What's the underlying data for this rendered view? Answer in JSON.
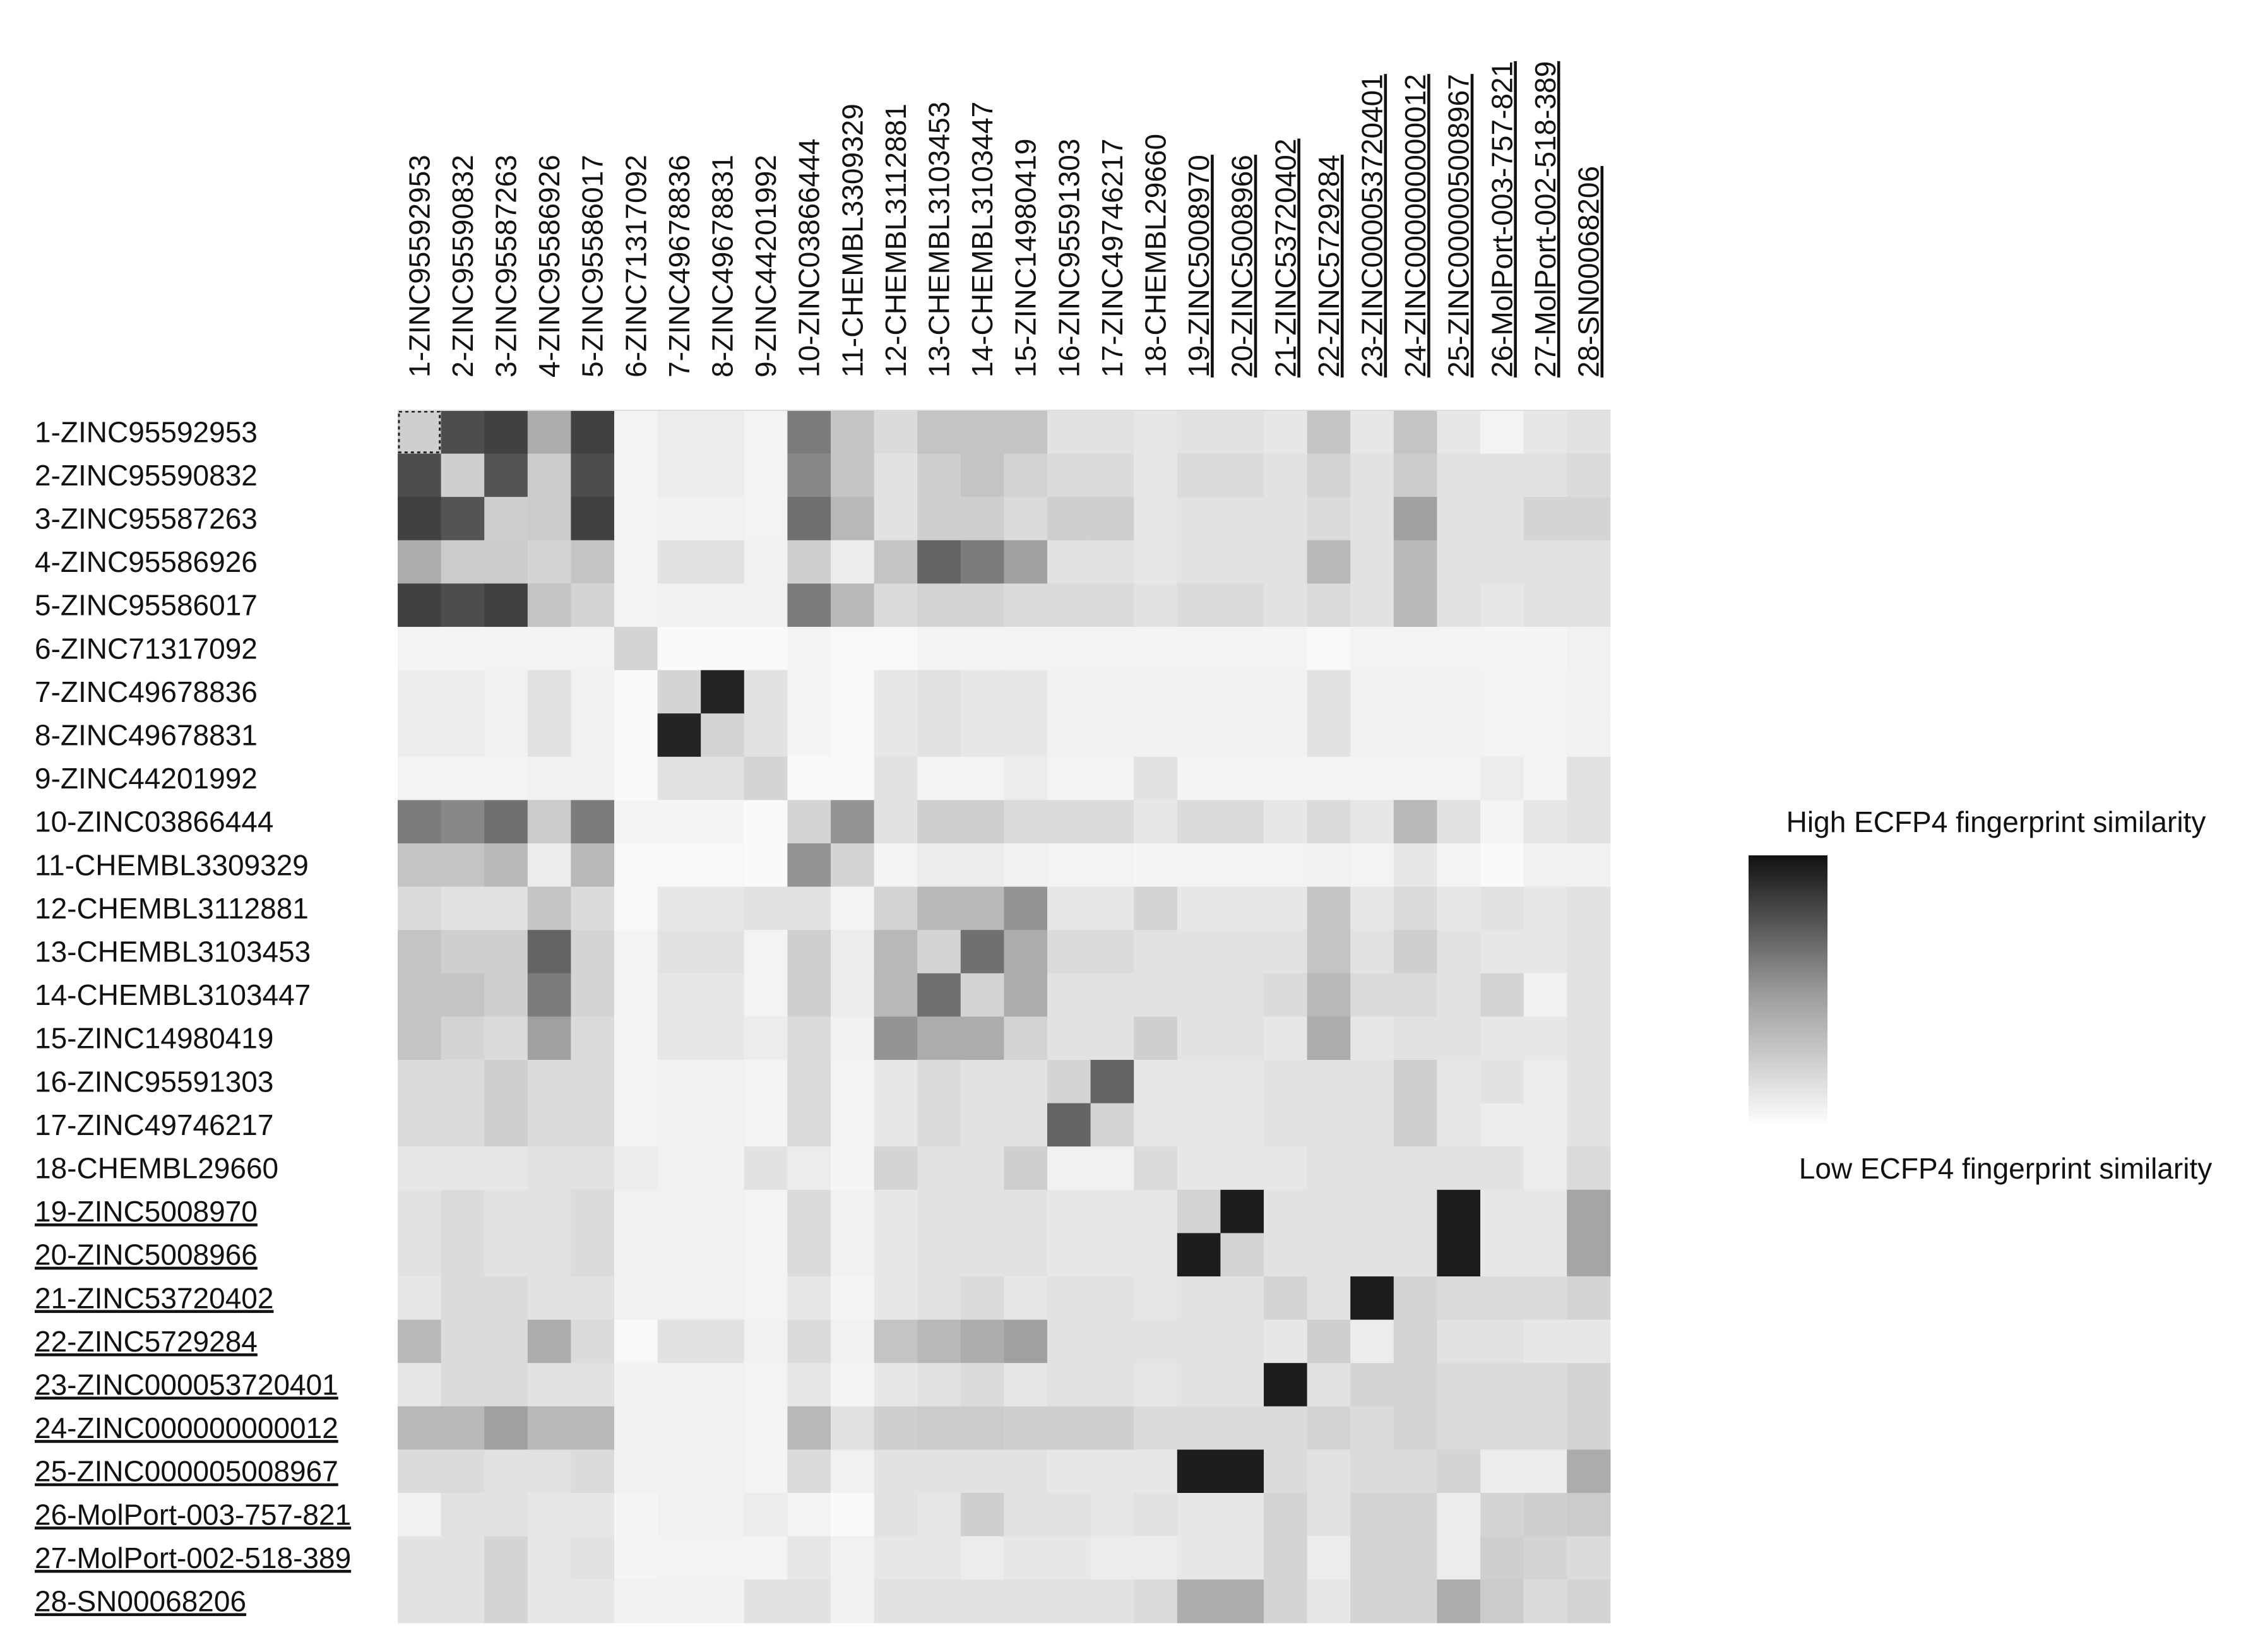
{
  "chart_data": {
    "type": "heatmap",
    "title": "",
    "xlabel": "",
    "ylabel": "",
    "labels": [
      "1-ZINC95592953",
      "2-ZINC95590832",
      "3-ZINC95587263",
      "4-ZINC95586926",
      "5-ZINC95586017",
      "6-ZINC71317092",
      "7-ZINC49678836",
      "8-ZINC49678831",
      "9-ZINC44201992",
      "10-ZINC03866444",
      "11-CHEMBL3309329",
      "12-CHEMBL3112881",
      "13-CHEMBL3103453",
      "14-CHEMBL3103447",
      "15-ZINC14980419",
      "16-ZINC95591303",
      "17-ZINC49746217",
      "18-CHEMBL29660",
      "19-ZINC5008970",
      "20-ZINC5008966",
      "21-ZINC53720402",
      "22-ZINC5729284",
      "23-ZINC000053720401",
      "24-ZINC000000000012",
      "25-ZINC000005008967",
      "26-MolPort-003-757-821",
      "27-MolPort-002-518-389",
      "28-SN00068206"
    ],
    "underlined_from_index": 18,
    "value_range": [
      0,
      1
    ],
    "matrix": [
      [
        0.2,
        0.75,
        0.8,
        0.35,
        0.8,
        0.05,
        0.08,
        0.08,
        0.05,
        0.55,
        0.25,
        0.15,
        0.25,
        0.25,
        0.25,
        0.12,
        0.12,
        0.1,
        0.12,
        0.12,
        0.1,
        0.25,
        0.1,
        0.25,
        0.1,
        0.05,
        0.1,
        0.12
      ],
      [
        0.75,
        0.2,
        0.72,
        0.22,
        0.75,
        0.05,
        0.08,
        0.08,
        0.05,
        0.5,
        0.25,
        0.12,
        0.2,
        0.25,
        0.18,
        0.15,
        0.15,
        0.1,
        0.15,
        0.15,
        0.12,
        0.18,
        0.12,
        0.22,
        0.12,
        0.12,
        0.12,
        0.15
      ],
      [
        0.8,
        0.72,
        0.2,
        0.22,
        0.8,
        0.05,
        0.06,
        0.06,
        0.05,
        0.6,
        0.3,
        0.12,
        0.2,
        0.2,
        0.15,
        0.2,
        0.2,
        0.1,
        0.12,
        0.12,
        0.12,
        0.15,
        0.12,
        0.4,
        0.12,
        0.12,
        0.18,
        0.18
      ],
      [
        0.35,
        0.22,
        0.22,
        0.18,
        0.25,
        0.05,
        0.12,
        0.12,
        0.06,
        0.2,
        0.08,
        0.25,
        0.65,
        0.55,
        0.4,
        0.12,
        0.12,
        0.1,
        0.12,
        0.12,
        0.12,
        0.3,
        0.12,
        0.3,
        0.12,
        0.12,
        0.12,
        0.12
      ],
      [
        0.8,
        0.75,
        0.8,
        0.25,
        0.18,
        0.05,
        0.06,
        0.06,
        0.06,
        0.55,
        0.3,
        0.15,
        0.18,
        0.18,
        0.15,
        0.15,
        0.15,
        0.12,
        0.15,
        0.15,
        0.12,
        0.15,
        0.12,
        0.3,
        0.12,
        0.1,
        0.12,
        0.12
      ],
      [
        0.05,
        0.05,
        0.05,
        0.05,
        0.05,
        0.18,
        0.02,
        0.02,
        0.02,
        0.05,
        0.03,
        0.03,
        0.05,
        0.05,
        0.05,
        0.05,
        0.05,
        0.05,
        0.05,
        0.05,
        0.05,
        0.03,
        0.05,
        0.05,
        0.05,
        0.04,
        0.04,
        0.06
      ],
      [
        0.08,
        0.08,
        0.06,
        0.12,
        0.06,
        0.02,
        0.18,
        0.92,
        0.12,
        0.04,
        0.03,
        0.1,
        0.12,
        0.1,
        0.1,
        0.06,
        0.06,
        0.06,
        0.06,
        0.06,
        0.06,
        0.12,
        0.06,
        0.06,
        0.06,
        0.05,
        0.05,
        0.06
      ],
      [
        0.08,
        0.08,
        0.06,
        0.12,
        0.06,
        0.02,
        0.92,
        0.18,
        0.12,
        0.04,
        0.03,
        0.1,
        0.12,
        0.1,
        0.1,
        0.06,
        0.06,
        0.06,
        0.06,
        0.06,
        0.06,
        0.12,
        0.06,
        0.06,
        0.06,
        0.05,
        0.05,
        0.06
      ],
      [
        0.05,
        0.05,
        0.05,
        0.06,
        0.06,
        0.02,
        0.12,
        0.12,
        0.18,
        0.02,
        0.02,
        0.12,
        0.05,
        0.05,
        0.08,
        0.05,
        0.05,
        0.12,
        0.05,
        0.05,
        0.05,
        0.05,
        0.05,
        0.05,
        0.05,
        0.08,
        0.05,
        0.12
      ],
      [
        0.55,
        0.5,
        0.6,
        0.22,
        0.55,
        0.05,
        0.04,
        0.04,
        0.02,
        0.18,
        0.45,
        0.12,
        0.2,
        0.2,
        0.15,
        0.15,
        0.15,
        0.1,
        0.15,
        0.15,
        0.1,
        0.15,
        0.1,
        0.3,
        0.12,
        0.05,
        0.1,
        0.12
      ],
      [
        0.25,
        0.25,
        0.3,
        0.08,
        0.3,
        0.03,
        0.03,
        0.03,
        0.02,
        0.45,
        0.18,
        0.05,
        0.08,
        0.08,
        0.06,
        0.05,
        0.05,
        0.04,
        0.05,
        0.05,
        0.05,
        0.06,
        0.05,
        0.1,
        0.05,
        0.02,
        0.06,
        0.06
      ],
      [
        0.15,
        0.12,
        0.12,
        0.25,
        0.15,
        0.03,
        0.1,
        0.1,
        0.12,
        0.12,
        0.05,
        0.18,
        0.3,
        0.3,
        0.45,
        0.1,
        0.1,
        0.18,
        0.1,
        0.1,
        0.1,
        0.25,
        0.1,
        0.15,
        0.1,
        0.12,
        0.1,
        0.12
      ],
      [
        0.25,
        0.2,
        0.2,
        0.65,
        0.18,
        0.05,
        0.12,
        0.12,
        0.05,
        0.2,
        0.08,
        0.3,
        0.18,
        0.6,
        0.35,
        0.15,
        0.15,
        0.12,
        0.12,
        0.12,
        0.12,
        0.25,
        0.12,
        0.2,
        0.12,
        0.1,
        0.1,
        0.12
      ],
      [
        0.25,
        0.25,
        0.2,
        0.55,
        0.18,
        0.05,
        0.1,
        0.1,
        0.05,
        0.2,
        0.08,
        0.3,
        0.6,
        0.18,
        0.35,
        0.12,
        0.12,
        0.12,
        0.12,
        0.12,
        0.15,
        0.3,
        0.15,
        0.15,
        0.12,
        0.18,
        0.06,
        0.12
      ],
      [
        0.25,
        0.18,
        0.15,
        0.4,
        0.15,
        0.05,
        0.1,
        0.1,
        0.08,
        0.15,
        0.06,
        0.45,
        0.35,
        0.35,
        0.18,
        0.12,
        0.12,
        0.2,
        0.12,
        0.12,
        0.1,
        0.35,
        0.1,
        0.12,
        0.12,
        0.1,
        0.1,
        0.12
      ],
      [
        0.15,
        0.15,
        0.2,
        0.15,
        0.15,
        0.05,
        0.06,
        0.06,
        0.05,
        0.15,
        0.05,
        0.1,
        0.15,
        0.12,
        0.12,
        0.18,
        0.65,
        0.1,
        0.1,
        0.1,
        0.12,
        0.12,
        0.12,
        0.2,
        0.1,
        0.12,
        0.08,
        0.12
      ],
      [
        0.15,
        0.15,
        0.2,
        0.15,
        0.15,
        0.05,
        0.06,
        0.06,
        0.05,
        0.15,
        0.05,
        0.1,
        0.15,
        0.12,
        0.12,
        0.65,
        0.18,
        0.1,
        0.1,
        0.1,
        0.12,
        0.12,
        0.12,
        0.2,
        0.1,
        0.08,
        0.08,
        0.12
      ],
      [
        0.1,
        0.1,
        0.1,
        0.12,
        0.12,
        0.08,
        0.06,
        0.06,
        0.12,
        0.08,
        0.04,
        0.18,
        0.12,
        0.12,
        0.2,
        0.06,
        0.06,
        0.15,
        0.1,
        0.1,
        0.1,
        0.12,
        0.12,
        0.12,
        0.12,
        0.12,
        0.08,
        0.15
      ],
      [
        0.12,
        0.15,
        0.12,
        0.12,
        0.15,
        0.06,
        0.06,
        0.06,
        0.05,
        0.15,
        0.06,
        0.1,
        0.12,
        0.12,
        0.12,
        0.1,
        0.1,
        0.1,
        0.18,
        0.95,
        0.12,
        0.12,
        0.12,
        0.12,
        0.95,
        0.1,
        0.1,
        0.38
      ],
      [
        0.12,
        0.15,
        0.12,
        0.12,
        0.15,
        0.06,
        0.06,
        0.06,
        0.05,
        0.15,
        0.06,
        0.1,
        0.12,
        0.12,
        0.12,
        0.1,
        0.1,
        0.1,
        0.95,
        0.18,
        0.12,
        0.12,
        0.12,
        0.12,
        0.95,
        0.1,
        0.1,
        0.38
      ],
      [
        0.1,
        0.15,
        0.15,
        0.12,
        0.12,
        0.06,
        0.06,
        0.06,
        0.05,
        0.1,
        0.04,
        0.1,
        0.12,
        0.15,
        0.1,
        0.12,
        0.12,
        0.1,
        0.12,
        0.12,
        0.18,
        0.12,
        0.95,
        0.18,
        0.15,
        0.15,
        0.15,
        0.18
      ],
      [
        0.3,
        0.15,
        0.15,
        0.35,
        0.15,
        0.03,
        0.12,
        0.12,
        0.06,
        0.15,
        0.06,
        0.25,
        0.3,
        0.35,
        0.4,
        0.12,
        0.12,
        0.12,
        0.12,
        0.12,
        0.1,
        0.2,
        0.08,
        0.18,
        0.12,
        0.12,
        0.1,
        0.1
      ],
      [
        0.1,
        0.15,
        0.15,
        0.12,
        0.12,
        0.06,
        0.06,
        0.06,
        0.05,
        0.1,
        0.04,
        0.1,
        0.12,
        0.15,
        0.1,
        0.12,
        0.12,
        0.1,
        0.12,
        0.12,
        0.95,
        0.12,
        0.18,
        0.18,
        0.15,
        0.15,
        0.15,
        0.18
      ],
      [
        0.3,
        0.3,
        0.4,
        0.3,
        0.3,
        0.06,
        0.06,
        0.06,
        0.05,
        0.3,
        0.12,
        0.2,
        0.22,
        0.22,
        0.2,
        0.2,
        0.2,
        0.15,
        0.15,
        0.15,
        0.15,
        0.18,
        0.15,
        0.18,
        0.15,
        0.15,
        0.15,
        0.18
      ],
      [
        0.15,
        0.15,
        0.12,
        0.12,
        0.15,
        0.06,
        0.06,
        0.06,
        0.05,
        0.15,
        0.06,
        0.12,
        0.12,
        0.12,
        0.12,
        0.1,
        0.1,
        0.1,
        0.95,
        0.95,
        0.15,
        0.12,
        0.15,
        0.15,
        0.18,
        0.08,
        0.08,
        0.35
      ],
      [
        0.06,
        0.12,
        0.12,
        0.1,
        0.1,
        0.04,
        0.06,
        0.06,
        0.08,
        0.05,
        0.02,
        0.12,
        0.1,
        0.2,
        0.12,
        0.12,
        0.1,
        0.12,
        0.1,
        0.1,
        0.18,
        0.12,
        0.18,
        0.18,
        0.08,
        0.18,
        0.2,
        0.22
      ],
      [
        0.12,
        0.12,
        0.18,
        0.1,
        0.12,
        0.04,
        0.05,
        0.05,
        0.05,
        0.1,
        0.06,
        0.1,
        0.1,
        0.08,
        0.1,
        0.1,
        0.08,
        0.08,
        0.1,
        0.1,
        0.18,
        0.08,
        0.18,
        0.18,
        0.08,
        0.2,
        0.18,
        0.15
      ],
      [
        0.12,
        0.12,
        0.18,
        0.1,
        0.1,
        0.06,
        0.06,
        0.06,
        0.12,
        0.12,
        0.06,
        0.12,
        0.12,
        0.12,
        0.12,
        0.12,
        0.12,
        0.15,
        0.35,
        0.35,
        0.18,
        0.1,
        0.18,
        0.18,
        0.35,
        0.22,
        0.15,
        0.18
      ]
    ],
    "colorbar": {
      "high_label": "High ECFP4 fingerprint similarity",
      "low_label": "Low ECFP4 fingerprint similarity",
      "high_color": "#111111",
      "low_color": "#ffffff"
    }
  }
}
